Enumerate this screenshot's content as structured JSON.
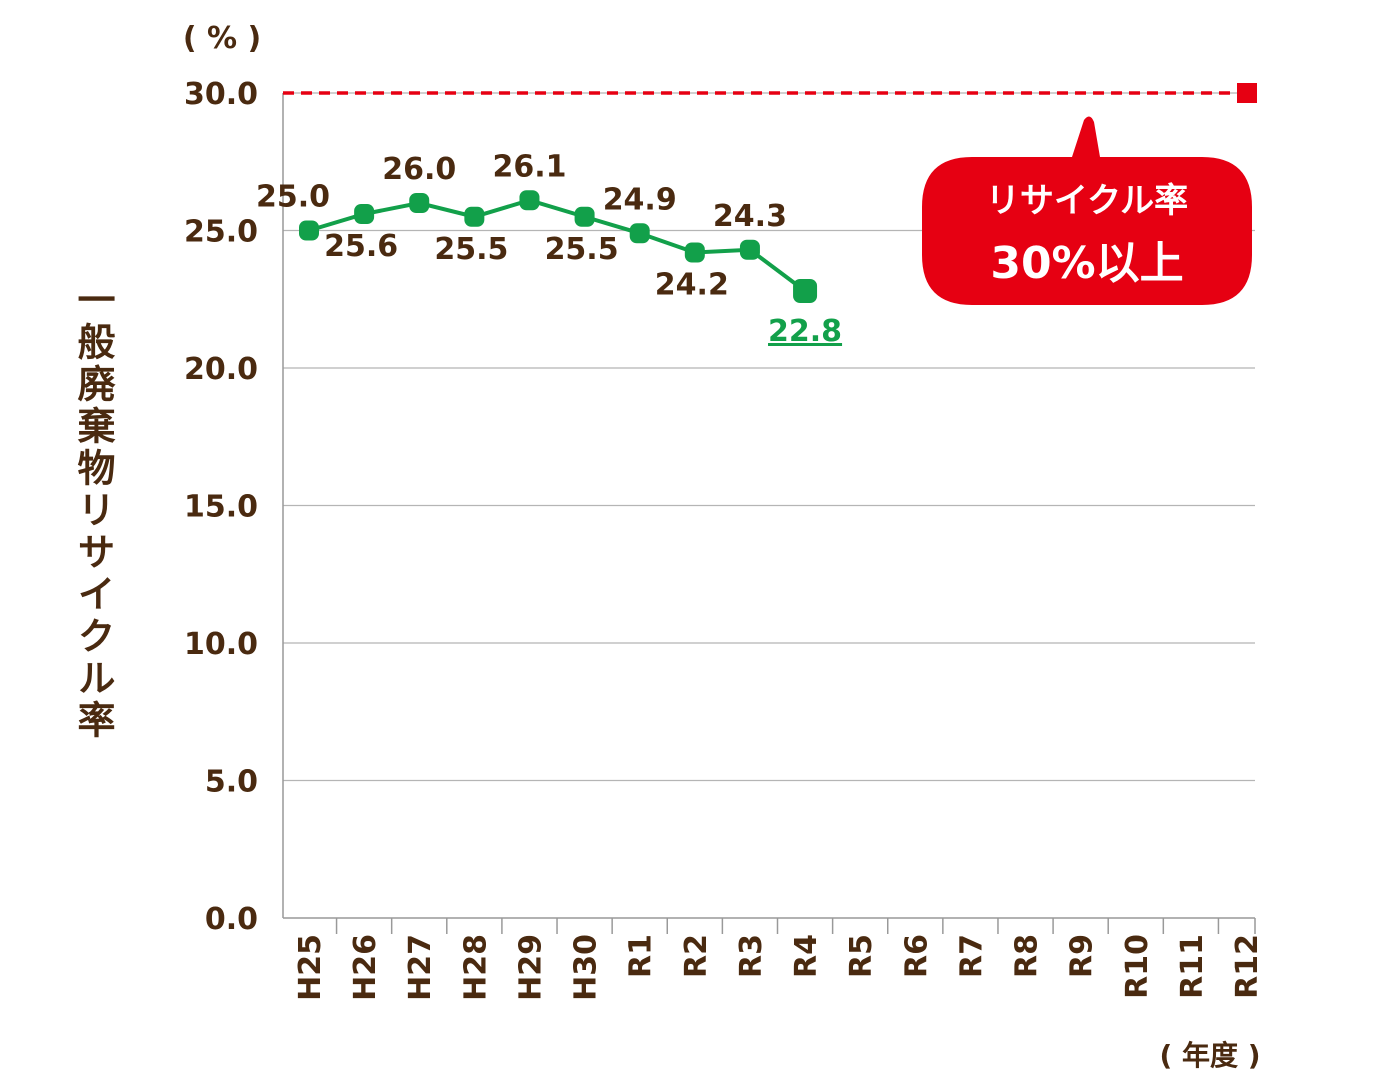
{
  "chart_data": {
    "type": "line",
    "unit_label": "( % )",
    "y_axis_label": "一般廃棄物リサイクル率",
    "x_axis_label": "( 年度 )",
    "categories": [
      "H25",
      "H26",
      "H27",
      "H28",
      "H29",
      "H30",
      "R1",
      "R2",
      "R3",
      "R4",
      "R5",
      "R6",
      "R7",
      "R8",
      "R9",
      "R10",
      "R11",
      "R12"
    ],
    "series": [
      {
        "name": "一般廃棄物リサイクル率",
        "color": "#12a04a",
        "values": [
          25.0,
          25.6,
          26.0,
          25.5,
          26.1,
          25.5,
          24.9,
          24.2,
          24.3,
          22.8,
          null,
          null,
          null,
          null,
          null,
          null,
          null,
          null
        ],
        "value_labels": [
          "25.0",
          "25.6",
          "26.0",
          "25.5",
          "26.1",
          "25.5",
          "24.9",
          "24.2",
          "24.3",
          "22.8",
          null,
          null,
          null,
          null,
          null,
          null,
          null,
          null
        ]
      }
    ],
    "target": {
      "value": 30,
      "color": "#e60012",
      "callout": [
        "リサイクル率",
        "30%以上"
      ]
    },
    "ylim": [
      0,
      30
    ],
    "yticks": [
      {
        "value": 0,
        "label": "0.0"
      },
      {
        "value": 5,
        "label": "5.0"
      },
      {
        "value": 10,
        "label": "10.0"
      },
      {
        "value": 15,
        "label": "15.0"
      },
      {
        "value": 20,
        "label": "20.0"
      },
      {
        "value": 25,
        "label": "25.0"
      },
      {
        "value": 30,
        "label": "30.0"
      }
    ],
    "grid": true
  }
}
